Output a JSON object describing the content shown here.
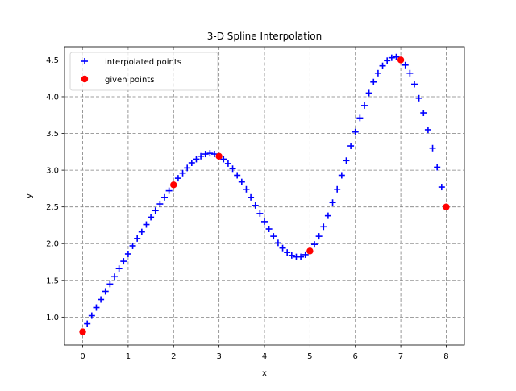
{
  "chart_data": {
    "type": "scatter",
    "title": "3-D Spline Interpolation",
    "xlabel": "x",
    "ylabel": "y",
    "xlim": [
      -0.4,
      8.4
    ],
    "ylim": [
      0.62,
      4.68
    ],
    "xticks": [
      0,
      1,
      2,
      3,
      4,
      5,
      6,
      7,
      8
    ],
    "xtick_labels": [
      "0",
      "1",
      "2",
      "3",
      "4",
      "5",
      "6",
      "7",
      "8"
    ],
    "yticks": [
      1.0,
      1.5,
      2.0,
      2.5,
      3.0,
      3.5,
      4.0,
      4.5
    ],
    "ytick_labels": [
      "1.0",
      "1.5",
      "2.0",
      "2.5",
      "3.0",
      "3.5",
      "4.0",
      "4.5"
    ],
    "grid": true,
    "legend_position": "top-left",
    "series": [
      {
        "name": "interpolated points",
        "marker": "plus",
        "color": "#0000ff",
        "x": [
          0.1,
          0.2,
          0.3,
          0.4,
          0.5,
          0.6,
          0.7,
          0.8,
          0.9,
          1.0,
          1.1,
          1.2,
          1.3,
          1.4,
          1.5,
          1.6,
          1.7,
          1.8,
          1.9,
          2.0,
          2.1,
          2.2,
          2.3,
          2.4,
          2.5,
          2.6,
          2.7,
          2.8,
          2.9,
          3.0,
          3.1,
          3.2,
          3.3,
          3.4,
          3.5,
          3.6,
          3.7,
          3.8,
          3.9,
          4.0,
          4.1,
          4.2,
          4.3,
          4.4,
          4.5,
          4.6,
          4.7,
          4.8,
          4.9,
          5.0,
          5.1,
          5.2,
          5.3,
          5.4,
          5.5,
          5.6,
          5.7,
          5.8,
          5.9,
          6.0,
          6.1,
          6.2,
          6.3,
          6.4,
          6.5,
          6.6,
          6.7,
          6.8,
          6.9,
          7.0,
          7.1,
          7.2,
          7.3,
          7.4,
          7.5,
          7.6,
          7.7,
          7.8,
          7.9
        ],
        "y": [
          0.91,
          1.02,
          1.13,
          1.24,
          1.35,
          1.45,
          1.55,
          1.66,
          1.76,
          1.86,
          1.97,
          2.07,
          2.16,
          2.26,
          2.36,
          2.45,
          2.54,
          2.63,
          2.72,
          2.8,
          2.89,
          2.96,
          3.03,
          3.1,
          3.15,
          3.19,
          3.22,
          3.23,
          3.22,
          3.19,
          3.15,
          3.09,
          3.02,
          2.93,
          2.84,
          2.74,
          2.63,
          2.52,
          2.41,
          2.3,
          2.2,
          2.1,
          2.01,
          1.94,
          1.88,
          1.84,
          1.82,
          1.82,
          1.85,
          1.9,
          1.99,
          2.1,
          2.23,
          2.38,
          2.56,
          2.74,
          2.93,
          3.13,
          3.33,
          3.52,
          3.71,
          3.88,
          4.05,
          4.2,
          4.32,
          4.42,
          4.49,
          4.53,
          4.54,
          4.5,
          4.43,
          4.32,
          4.17,
          3.98,
          3.78,
          3.55,
          3.3,
          3.04,
          2.77
        ]
      },
      {
        "name": "given points",
        "marker": "circle",
        "color": "#ff0000",
        "x": [
          0,
          2,
          3,
          5,
          7,
          8
        ],
        "y": [
          0.8,
          2.8,
          3.19,
          1.9,
          4.5,
          2.5
        ]
      }
    ]
  }
}
